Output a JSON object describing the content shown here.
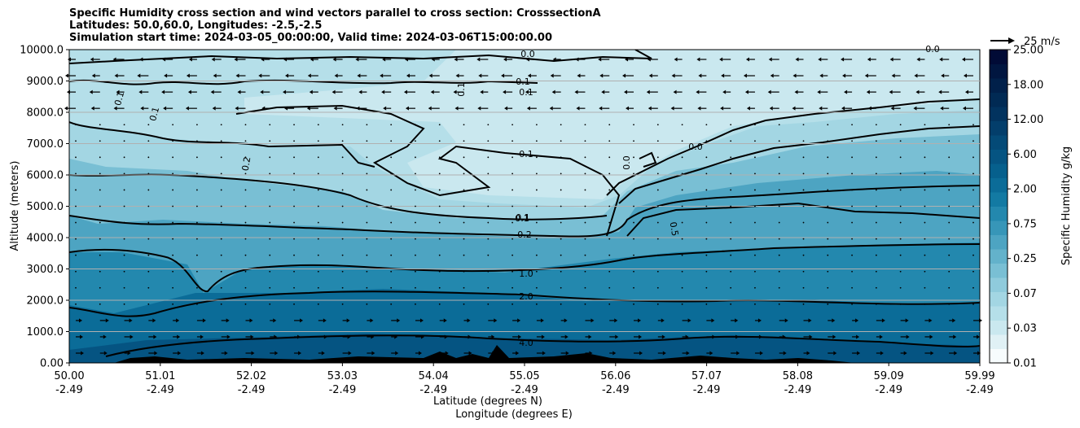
{
  "chart_data": {
    "type": "heatmap",
    "title_lines": [
      "Specific Humidity cross section and wind vectors parallel to cross section: CrosssectionA",
      "Latitudes: 50.0,60.0, Longitudes: -2.5,-2.5",
      "Simulation start time: 2024-03-05_00:00:00, Valid time: 2024-03-06T15:00:00.00"
    ],
    "ylabel": "Altitude (meters)",
    "xlabel_lines": [
      "Latitude (degrees N)",
      "Longitude (degrees E)"
    ],
    "ylim": [
      0,
      10000
    ],
    "y_ticks": [
      "0.00",
      "1000.0",
      "2000.0",
      "3000.0",
      "4000.0",
      "5000.0",
      "6000.0",
      "7000.0",
      "8000.0",
      "9000.0",
      "10000.0"
    ],
    "x_ticks_lat": [
      "50.00",
      "51.01",
      "52.02",
      "53.03",
      "54.04",
      "55.05",
      "56.06",
      "57.07",
      "58.08",
      "59.09",
      "59.99"
    ],
    "x_ticks_lon": [
      "-2.49",
      "-2.49",
      "-2.49",
      "-2.49",
      "-2.49",
      "-2.49",
      "-2.49",
      "-2.49",
      "-2.49",
      "-2.49",
      "-2.49"
    ],
    "colorbar": {
      "label": "Specific Humidity g/kg",
      "tick_labels": [
        "0.01",
        "0.03",
        "0.07",
        "0.25",
        "0.75",
        "2.00",
        "6.00",
        "12.00",
        "18.00",
        "25.00"
      ],
      "colors": [
        "#f7fcfd",
        "#e0f1f5",
        "#cae8ef",
        "#b5dfe9",
        "#a3d6e3",
        "#8fcbdc",
        "#79bfd4",
        "#63b2cb",
        "#4da4c2",
        "#3796b8",
        "#2388ae",
        "#137aa3",
        "#0b6c98",
        "#06608d",
        "#055482",
        "#044a77",
        "#033e6b",
        "#02335f",
        "#012a54",
        "#01204a",
        "#011640",
        "#010b36"
      ]
    },
    "contour_labels": [
      "0.0",
      "0.1",
      "0.1",
      "0.1",
      "0.1",
      "0.1",
      "0.1",
      "0.1",
      "0.2",
      "0.0",
      "0.0",
      "0.0",
      "0.1",
      "0.2",
      "0.5",
      "1.0",
      "2.0",
      "4.0"
    ],
    "wind_reference": "25 m/s"
  }
}
